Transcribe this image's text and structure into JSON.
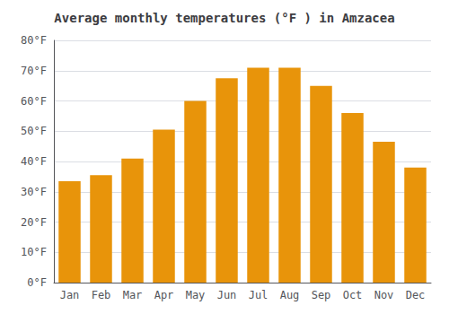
{
  "chart_data": {
    "type": "bar",
    "title": "Average monthly temperatures (°F ) in Amzacea",
    "categories": [
      "Jan",
      "Feb",
      "Mar",
      "Apr",
      "May",
      "Jun",
      "Jul",
      "Aug",
      "Sep",
      "Oct",
      "Nov",
      "Dec"
    ],
    "values": [
      33.5,
      35.5,
      41.0,
      50.5,
      60.0,
      67.5,
      71.0,
      71.0,
      65.0,
      56.0,
      46.5,
      38.0
    ],
    "color": "#E8940A",
    "ylim": [
      0,
      80
    ],
    "yticks": [
      {
        "value": 0,
        "label": "0°F"
      },
      {
        "value": 10,
        "label": "10°F"
      },
      {
        "value": 20,
        "label": "20°F"
      },
      {
        "value": 30,
        "label": "30°F"
      },
      {
        "value": 40,
        "label": "40°F"
      },
      {
        "value": 50,
        "label": "50°F"
      },
      {
        "value": 60,
        "label": "60°F"
      },
      {
        "value": 70,
        "label": "70°F"
      },
      {
        "value": 80,
        "label": "80°F"
      }
    ],
    "grid": true
  }
}
